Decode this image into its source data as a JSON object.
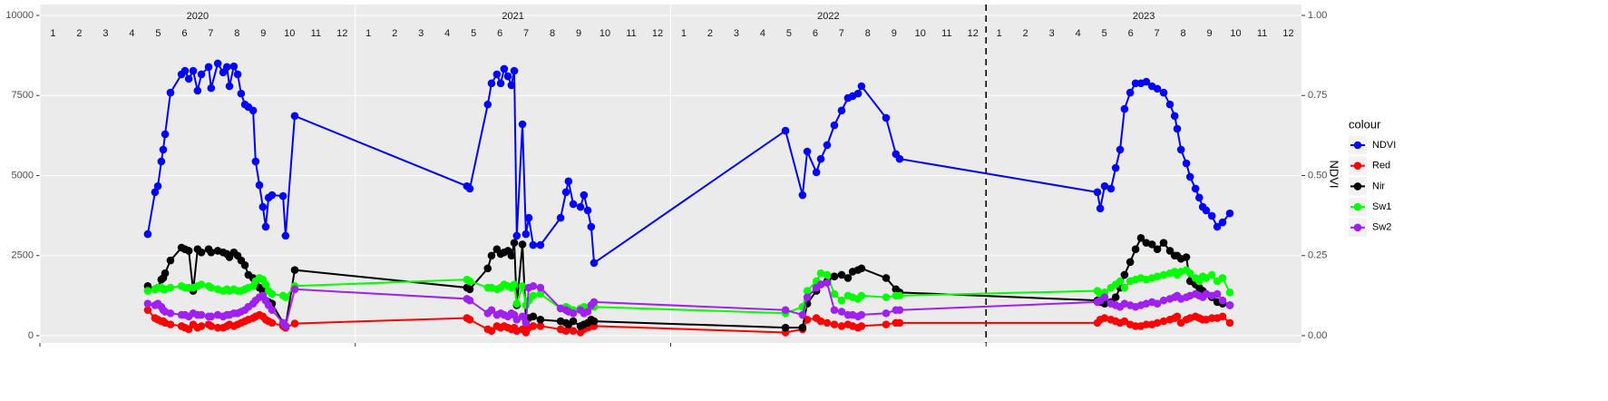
{
  "chart_data": {
    "type": "line",
    "years": [
      "2020",
      "2021",
      "2022",
      "2023"
    ],
    "months": [
      "1",
      "2",
      "3",
      "4",
      "5",
      "6",
      "7",
      "8",
      "9",
      "10",
      "11",
      "12"
    ],
    "y2_label": "NDVI",
    "legend_title": "colour",
    "legend": "right",
    "grid": true,
    "vline": 2023,
    "xlim": [
      2020,
      2024
    ],
    "xticks": [
      2020,
      2021,
      2022,
      2023
    ],
    "ylim": [
      -227,
      10340
    ],
    "yticks": [
      0,
      2500,
      5000,
      7500,
      10000
    ],
    "y2lim": [
      -0.0227,
      1.034
    ],
    "y2ticks": [
      {
        "value": 0,
        "label": "0.00"
      },
      {
        "value": 0.25,
        "label": "0.25"
      },
      {
        "value": 0.5,
        "label": "0.50"
      },
      {
        "value": 0.75,
        "label": "0.75"
      },
      {
        "value": 1,
        "label": "1.00"
      }
    ],
    "x": [
      2020.342,
      2020.365,
      2020.374,
      2020.385,
      2020.391,
      2020.397,
      2020.414,
      2020.449,
      2020.46,
      2020.472,
      2020.486,
      2020.5,
      2020.512,
      2020.535,
      2020.543,
      2020.564,
      2020.581,
      2020.593,
      2020.601,
      2020.615,
      2020.627,
      2020.638,
      2020.65,
      2020.661,
      2020.676,
      2020.684,
      2020.696,
      2020.707,
      2020.716,
      2020.725,
      2020.736,
      2020.771,
      2020.779,
      2020.808,
      2021.354,
      2021.363,
      2021.42,
      2021.432,
      2021.449,
      2021.461,
      2021.472,
      2021.484,
      2021.495,
      2021.504,
      2021.512,
      2021.53,
      2021.541,
      2021.55,
      2021.564,
      2021.587,
      2021.651,
      2021.668,
      2021.676,
      2021.691,
      2021.714,
      2021.725,
      2021.737,
      2021.748,
      2021.757,
      2022.364,
      2022.418,
      2022.433,
      2022.462,
      2022.476,
      2022.496,
      2022.519,
      2022.542,
      2022.562,
      2022.577,
      2022.594,
      2022.605,
      2022.683,
      2022.714,
      2022.726,
      2023.353,
      2023.362,
      2023.376,
      2023.396,
      2023.411,
      2023.425,
      2023.439,
      2023.457,
      2023.474,
      2023.491,
      2023.508,
      2023.526,
      2023.543,
      2023.563,
      2023.583,
      2023.598,
      2023.606,
      2023.618,
      2023.635,
      2023.647,
      2023.664,
      2023.676,
      2023.687,
      2023.698,
      2023.716,
      2023.733,
      2023.75,
      2023.773
    ],
    "series": [
      {
        "name": "NDVI",
        "color": "#0000ff",
        "axis": "y2",
        "values": [
          0.317,
          0.448,
          0.467,
          0.544,
          0.581,
          0.629,
          0.759,
          0.816,
          0.827,
          0.802,
          0.827,
          0.765,
          0.816,
          0.839,
          0.773,
          0.85,
          0.822,
          0.839,
          0.779,
          0.841,
          0.816,
          0.756,
          0.722,
          0.714,
          0.703,
          0.544,
          0.47,
          0.402,
          0.34,
          0.431,
          0.439,
          0.436,
          0.312,
          0.686,
          0.467,
          0.459,
          0.722,
          0.788,
          0.816,
          0.788,
          0.833,
          0.81,
          0.782,
          0.827,
          0.312,
          0.66,
          0.317,
          0.368,
          0.283,
          0.283,
          0.368,
          0.448,
          0.482,
          0.411,
          0.402,
          0.439,
          0.391,
          0.34,
          0.227,
          0.64,
          0.439,
          0.575,
          0.51,
          0.552,
          0.595,
          0.657,
          0.703,
          0.742,
          0.748,
          0.756,
          0.779,
          0.68,
          0.567,
          0.552,
          0.448,
          0.397,
          0.467,
          0.459,
          0.524,
          0.581,
          0.708,
          0.759,
          0.788,
          0.788,
          0.793,
          0.779,
          0.771,
          0.759,
          0.722,
          0.686,
          0.646,
          0.581,
          0.538,
          0.496,
          0.459,
          0.431,
          0.402,
          0.391,
          0.374,
          0.34,
          0.354,
          0.382
        ]
      },
      {
        "name": "Red",
        "color": "#ff0000",
        "values": [
          800,
          550,
          500,
          450,
          450,
          400,
          350,
          300,
          250,
          200,
          350,
          250,
          300,
          350,
          300,
          250,
          250,
          300,
          350,
          300,
          350,
          400,
          450,
          500,
          550,
          600,
          650,
          600,
          500,
          450,
          400,
          300,
          250,
          380,
          550,
          500,
          200,
          150,
          300,
          250,
          300,
          250,
          200,
          250,
          150,
          200,
          100,
          250,
          300,
          300,
          200,
          150,
          200,
          150,
          100,
          200,
          250,
          300,
          300,
          100,
          200,
          500,
          550,
          450,
          400,
          350,
          300,
          350,
          300,
          250,
          300,
          350,
          400,
          400,
          400,
          500,
          550,
          500,
          450,
          400,
          450,
          350,
          300,
          300,
          350,
          350,
          400,
          450,
          500,
          550,
          600,
          400,
          500,
          550,
          600,
          550,
          500,
          500,
          550,
          550,
          600,
          400
        ]
      },
      {
        "name": "Nir",
        "color": "#000000",
        "values": [
          1550,
          1450,
          1500,
          1750,
          1800,
          1950,
          2350,
          2750,
          2700,
          2650,
          1400,
          2700,
          2600,
          2700,
          2600,
          2650,
          2600,
          2550,
          2450,
          2600,
          2500,
          2350,
          2200,
          1900,
          1800,
          1650,
          1500,
          1400,
          1100,
          1050,
          1000,
          400,
          300,
          2050,
          1500,
          1450,
          2100,
          2500,
          2700,
          2550,
          2600,
          2650,
          2500,
          2900,
          950,
          2850,
          500,
          550,
          600,
          500,
          450,
          400,
          350,
          450,
          300,
          350,
          400,
          500,
          450,
          250,
          250,
          1000,
          1400,
          1600,
          1700,
          1850,
          1900,
          1800,
          2000,
          2050,
          2100,
          1800,
          1450,
          1350,
          1100,
          1050,
          1000,
          1050,
          1200,
          1500,
          1900,
          2300,
          2700,
          3050,
          2900,
          2850,
          2700,
          2900,
          2650,
          2500,
          2500,
          2400,
          2450,
          1700,
          1600,
          1500,
          1400,
          1300,
          1200,
          1050,
          1000,
          950
        ]
      },
      {
        "name": "Sw1",
        "color": "#00ff00",
        "values": [
          1400,
          1450,
          1500,
          1500,
          1450,
          1450,
          1500,
          1550,
          1500,
          1500,
          1500,
          1550,
          1600,
          1550,
          1500,
          1450,
          1400,
          1450,
          1400,
          1450,
          1400,
          1400,
          1450,
          1500,
          1550,
          1700,
          1800,
          1750,
          1600,
          1400,
          1300,
          1250,
          1200,
          1550,
          1750,
          1700,
          1500,
          1500,
          1450,
          1500,
          1600,
          1550,
          1500,
          1600,
          1000,
          1550,
          950,
          1100,
          1250,
          1300,
          850,
          900,
          850,
          800,
          850,
          900,
          850,
          950,
          900,
          700,
          900,
          1400,
          1700,
          1950,
          1900,
          1300,
          1100,
          1250,
          1200,
          1150,
          1250,
          1200,
          1250,
          1250,
          1400,
          1300,
          1350,
          1500,
          1600,
          1700,
          1500,
          1700,
          1750,
          1800,
          1750,
          1800,
          1850,
          1900,
          1950,
          2000,
          1900,
          2000,
          2050,
          1950,
          1800,
          1700,
          1850,
          1800,
          1900,
          1700,
          1800,
          1350
        ]
      },
      {
        "name": "Sw2",
        "color": "#a020f0",
        "values": [
          1000,
          950,
          1000,
          900,
          800,
          750,
          700,
          650,
          650,
          600,
          700,
          650,
          650,
          600,
          600,
          650,
          600,
          650,
          650,
          700,
          700,
          750,
          800,
          900,
          1000,
          1100,
          1200,
          1250,
          1100,
          950,
          800,
          400,
          300,
          1450,
          1150,
          1100,
          700,
          800,
          650,
          700,
          650,
          600,
          700,
          650,
          500,
          600,
          400,
          1500,
          1550,
          1500,
          850,
          800,
          750,
          700,
          800,
          700,
          750,
          950,
          1050,
          800,
          650,
          1200,
          1500,
          1600,
          1650,
          800,
          750,
          650,
          650,
          600,
          650,
          700,
          800,
          800,
          1050,
          1100,
          1200,
          1000,
          950,
          900,
          1000,
          950,
          900,
          950,
          1000,
          1050,
          1000,
          1100,
          1150,
          1200,
          1250,
          1150,
          1200,
          1250,
          1300,
          1250,
          1200,
          1300,
          1250,
          1300,
          1100,
          950
        ]
      }
    ]
  }
}
